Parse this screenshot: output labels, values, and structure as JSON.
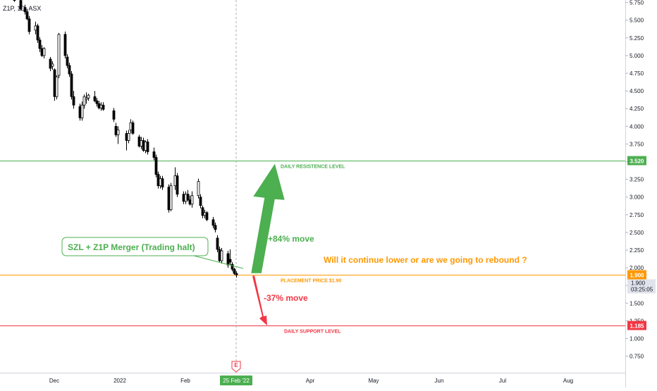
{
  "chart_data": {
    "type": "candlestick",
    "symbol_label": "Z1P, 1D, ASX",
    "price_axis": {
      "min": 0.5,
      "max": 5.75,
      "ticks": [
        "5.750",
        "5.500",
        "5.250",
        "5.000",
        "4.750",
        "4.500",
        "4.250",
        "4.000",
        "3.750",
        "3.500",
        "3.250",
        "3.000",
        "2.750",
        "2.500",
        "2.250",
        "2.000",
        "1.750",
        "1.500",
        "1.250",
        "1.000",
        "0.750"
      ]
    },
    "time_axis": {
      "labels": [
        {
          "text": "Dec",
          "x_date": "2021-12-01"
        },
        {
          "text": "2022",
          "x_date": "2022-01-01"
        },
        {
          "text": "Feb",
          "x_date": "2022-02-01"
        },
        {
          "text": "25 Feb '22",
          "x_date": "2022-02-25",
          "highlight": true
        },
        {
          "text": "Apr",
          "x_date": "2022-04-01"
        },
        {
          "text": "May",
          "x_date": "2022-05-01"
        },
        {
          "text": "Jun",
          "x_date": "2022-06-01"
        },
        {
          "text": "Jul",
          "x_date": "2022-07-01"
        },
        {
          "text": "Aug",
          "x_date": "2022-08-01"
        }
      ]
    },
    "crosshair_date": "2022-02-25",
    "earnings_marker": {
      "label": "E",
      "date": "2022-02-25"
    },
    "candles": [
      {
        "date": "2021-11-12",
        "o": 5.9,
        "h": 5.95,
        "l": 5.76,
        "c": 5.78
      },
      {
        "date": "2021-11-15",
        "o": 5.78,
        "h": 5.82,
        "l": 5.64,
        "c": 5.66
      },
      {
        "date": "2021-11-17",
        "o": 5.68,
        "h": 5.72,
        "l": 5.58,
        "c": 5.62
      },
      {
        "date": "2021-11-18",
        "o": 5.62,
        "h": 5.66,
        "l": 5.5,
        "c": 5.52
      },
      {
        "date": "2021-11-19",
        "o": 5.52,
        "h": 5.56,
        "l": 5.3,
        "c": 5.34
      },
      {
        "date": "2021-11-22",
        "o": 5.36,
        "h": 5.48,
        "l": 5.3,
        "c": 5.42
      },
      {
        "date": "2021-11-23",
        "o": 5.42,
        "h": 5.45,
        "l": 5.18,
        "c": 5.22
      },
      {
        "date": "2021-11-24",
        "o": 5.22,
        "h": 5.26,
        "l": 5.05,
        "c": 5.1
      },
      {
        "date": "2021-11-25",
        "o": 5.1,
        "h": 5.15,
        "l": 4.98,
        "c": 5.0
      },
      {
        "date": "2021-11-26",
        "o": 5.0,
        "h": 5.12,
        "l": 4.96,
        "c": 5.1
      },
      {
        "date": "2021-11-29",
        "o": 4.95,
        "h": 4.98,
        "l": 4.78,
        "c": 4.82
      },
      {
        "date": "2021-11-30",
        "o": 4.85,
        "h": 4.92,
        "l": 4.8,
        "c": 4.88
      },
      {
        "date": "2021-12-01",
        "o": 4.8,
        "h": 4.82,
        "l": 4.36,
        "c": 4.42
      },
      {
        "date": "2021-12-02",
        "o": 4.42,
        "h": 4.72,
        "l": 4.38,
        "c": 4.7
      },
      {
        "date": "2021-12-03",
        "o": 4.72,
        "h": 5.32,
        "l": 4.68,
        "c": 5.3
      },
      {
        "date": "2021-12-06",
        "o": 5.3,
        "h": 5.34,
        "l": 4.96,
        "c": 5.0
      },
      {
        "date": "2021-12-07",
        "o": 4.98,
        "h": 5.02,
        "l": 4.82,
        "c": 4.86
      },
      {
        "date": "2021-12-08",
        "o": 4.86,
        "h": 4.9,
        "l": 4.7,
        "c": 4.74
      },
      {
        "date": "2021-12-09",
        "o": 4.74,
        "h": 4.78,
        "l": 4.38,
        "c": 4.42
      },
      {
        "date": "2021-12-10",
        "o": 4.42,
        "h": 4.5,
        "l": 4.25,
        "c": 4.3
      },
      {
        "date": "2021-12-13",
        "o": 4.28,
        "h": 4.32,
        "l": 4.08,
        "c": 4.12
      },
      {
        "date": "2021-12-14",
        "o": 4.12,
        "h": 4.35,
        "l": 4.08,
        "c": 4.3
      },
      {
        "date": "2021-12-15",
        "o": 4.3,
        "h": 4.45,
        "l": 4.25,
        "c": 4.42
      },
      {
        "date": "2021-12-16",
        "o": 4.38,
        "h": 4.48,
        "l": 4.32,
        "c": 4.4
      },
      {
        "date": "2021-12-17",
        "o": 4.4,
        "h": 4.46,
        "l": 4.36,
        "c": 4.44
      },
      {
        "date": "2021-12-20",
        "o": 4.42,
        "h": 4.5,
        "l": 4.34,
        "c": 4.36
      },
      {
        "date": "2021-12-21",
        "o": 4.36,
        "h": 4.4,
        "l": 4.28,
        "c": 4.32
      },
      {
        "date": "2021-12-22",
        "o": 4.32,
        "h": 4.36,
        "l": 4.24,
        "c": 4.26
      },
      {
        "date": "2021-12-23",
        "o": 4.26,
        "h": 4.34,
        "l": 4.22,
        "c": 4.3
      },
      {
        "date": "2021-12-24",
        "o": 4.3,
        "h": 4.34,
        "l": 4.22,
        "c": 4.24
      },
      {
        "date": "2021-12-29",
        "o": 4.22,
        "h": 4.26,
        "l": 4.06,
        "c": 4.1
      },
      {
        "date": "2021-12-30",
        "o": 4.0,
        "h": 4.05,
        "l": 3.85,
        "c": 3.88
      },
      {
        "date": "2021-12-31",
        "o": 3.88,
        "h": 4.0,
        "l": 3.75,
        "c": 3.95
      },
      {
        "date": "2022-01-04",
        "o": 3.9,
        "h": 3.94,
        "l": 3.66,
        "c": 3.8
      },
      {
        "date": "2022-01-05",
        "o": 3.8,
        "h": 3.95,
        "l": 3.76,
        "c": 3.9
      },
      {
        "date": "2022-01-06",
        "o": 3.95,
        "h": 4.1,
        "l": 3.9,
        "c": 4.05
      },
      {
        "date": "2022-01-07",
        "o": 4.05,
        "h": 4.08,
        "l": 3.88,
        "c": 3.9
      },
      {
        "date": "2022-01-10",
        "o": 3.85,
        "h": 3.88,
        "l": 3.7,
        "c": 3.72
      },
      {
        "date": "2022-01-11",
        "o": 3.72,
        "h": 3.85,
        "l": 3.68,
        "c": 3.8
      },
      {
        "date": "2022-01-12",
        "o": 3.8,
        "h": 3.84,
        "l": 3.64,
        "c": 3.66
      },
      {
        "date": "2022-01-13",
        "o": 3.66,
        "h": 3.8,
        "l": 3.62,
        "c": 3.78
      },
      {
        "date": "2022-01-14",
        "o": 3.78,
        "h": 3.82,
        "l": 3.6,
        "c": 3.64
      },
      {
        "date": "2022-01-17",
        "o": 3.64,
        "h": 3.7,
        "l": 3.52,
        "c": 3.56
      },
      {
        "date": "2022-01-18",
        "o": 3.56,
        "h": 3.6,
        "l": 3.28,
        "c": 3.32
      },
      {
        "date": "2022-01-19",
        "o": 3.32,
        "h": 3.36,
        "l": 3.12,
        "c": 3.16
      },
      {
        "date": "2022-01-20",
        "o": 3.16,
        "h": 3.3,
        "l": 3.12,
        "c": 3.26
      },
      {
        "date": "2022-01-21",
        "o": 3.26,
        "h": 3.3,
        "l": 3.1,
        "c": 3.14
      },
      {
        "date": "2022-01-24",
        "o": 3.14,
        "h": 3.18,
        "l": 2.78,
        "c": 2.82
      },
      {
        "date": "2022-01-25",
        "o": 2.82,
        "h": 3.2,
        "l": 2.8,
        "c": 3.16
      },
      {
        "date": "2022-01-27",
        "o": 3.16,
        "h": 3.42,
        "l": 3.1,
        "c": 3.3
      },
      {
        "date": "2022-01-28",
        "o": 3.3,
        "h": 3.34,
        "l": 3.0,
        "c": 3.04
      },
      {
        "date": "2022-01-31",
        "o": 3.04,
        "h": 3.08,
        "l": 2.9,
        "c": 2.94
      },
      {
        "date": "2022-02-01",
        "o": 2.94,
        "h": 3.08,
        "l": 2.9,
        "c": 3.04
      },
      {
        "date": "2022-02-02",
        "o": 3.04,
        "h": 3.1,
        "l": 2.94,
        "c": 2.96
      },
      {
        "date": "2022-02-03",
        "o": 2.96,
        "h": 3.02,
        "l": 2.88,
        "c": 2.9
      },
      {
        "date": "2022-02-04",
        "o": 2.9,
        "h": 3.08,
        "l": 2.85,
        "c": 3.02
      },
      {
        "date": "2022-02-07",
        "o": 3.02,
        "h": 3.26,
        "l": 2.98,
        "c": 3.22
      },
      {
        "date": "2022-02-08",
        "o": 3.0,
        "h": 3.04,
        "l": 2.84,
        "c": 2.88
      },
      {
        "date": "2022-02-09",
        "o": 2.85,
        "h": 2.88,
        "l": 2.7,
        "c": 2.74
      },
      {
        "date": "2022-02-10",
        "o": 2.74,
        "h": 2.82,
        "l": 2.7,
        "c": 2.78
      },
      {
        "date": "2022-02-11",
        "o": 2.78,
        "h": 2.8,
        "l": 2.66,
        "c": 2.68
      },
      {
        "date": "2022-02-14",
        "o": 2.68,
        "h": 2.72,
        "l": 2.56,
        "c": 2.6
      },
      {
        "date": "2022-02-15",
        "o": 2.6,
        "h": 2.64,
        "l": 2.5,
        "c": 2.54
      },
      {
        "date": "2022-02-16",
        "o": 2.42,
        "h": 2.46,
        "l": 2.22,
        "c": 2.26
      },
      {
        "date": "2022-02-17",
        "o": 2.26,
        "h": 2.3,
        "l": 2.08,
        "c": 2.1
      },
      {
        "date": "2022-02-18",
        "o": 2.1,
        "h": 2.28,
        "l": 2.06,
        "c": 2.24
      },
      {
        "date": "2022-02-21",
        "o": 2.2,
        "h": 2.24,
        "l": 2.0,
        "c": 2.04
      },
      {
        "date": "2022-02-22",
        "o": 2.12,
        "h": 2.26,
        "l": 2.04,
        "c": 2.08
      },
      {
        "date": "2022-02-23",
        "o": 2.05,
        "h": 2.08,
        "l": 1.95,
        "c": 1.98
      },
      {
        "date": "2022-02-24",
        "o": 1.98,
        "h": 2.0,
        "l": 1.9,
        "c": 1.92
      },
      {
        "date": "2022-02-25",
        "o": 1.92,
        "h": 1.95,
        "l": 1.86,
        "c": 1.9
      }
    ],
    "horizontal_levels": [
      {
        "name": "resistance",
        "value": 3.52,
        "label": "DAILY RESISTENCE LEVEL",
        "tag": "3.520",
        "color": "#4caf50"
      },
      {
        "name": "placement",
        "value": 1.9,
        "label": "PLACEMENT PRICE $1.90",
        "tag": "1.900",
        "color": "#ff9800"
      },
      {
        "name": "support",
        "value": 1.185,
        "label": "DAILY SUPPORT LEVEL",
        "tag": "1.185",
        "color": "#f23645"
      }
    ],
    "current_price": {
      "value": 1.9,
      "label": "1.900",
      "countdown": "03:25:05"
    },
    "annotations": {
      "callout": "SZL + Z1P Merger (Trading halt)",
      "up_move": "+84% move",
      "down_move": "-37% move",
      "question": "Will it continue lower or are we going to rebound ?"
    },
    "colors": {
      "up_candle": "#ffffff",
      "down_candle": "#000000",
      "green": "#4caf50",
      "orange": "#ff9800",
      "red": "#f23645",
      "axis_text": "#131722",
      "grid": "#f0f3fa"
    }
  }
}
